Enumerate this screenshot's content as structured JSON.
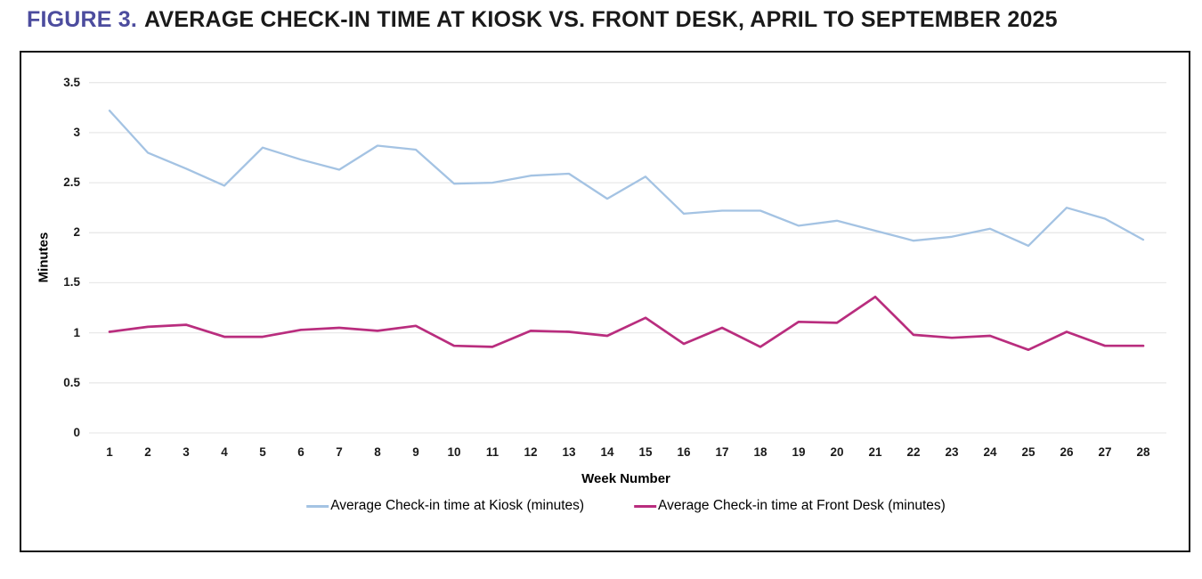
{
  "title": {
    "figure_label": "FIGURE 3.",
    "text": "AVERAGE CHECK-IN TIME AT KIOSK VS. FRONT DESK, APRIL TO SEPTEMBER 2025"
  },
  "colors": {
    "figure_label": "#4c4c9e",
    "title_text": "#1a1a1a",
    "gridline": "#e9e9e9",
    "frame_border": "#0d0d0d",
    "kiosk_line": "#a4c3e3",
    "front_desk_line": "#b92d7e"
  },
  "chart_data": {
    "type": "line",
    "title": "FIGURE 3. AVERAGE CHECK-IN TIME AT KIOSK VS. FRONT DESK, APRIL TO SEPTEMBER 2025",
    "xlabel": "Week Number",
    "ylabel": "Minutes",
    "ylim": [
      0,
      3.5
    ],
    "yticks": [
      "0",
      "0.5",
      "1",
      "1.5",
      "2",
      "2.5",
      "3",
      "3.5"
    ],
    "grid": "horizontal",
    "legend_position": "bottom",
    "x": [
      1,
      2,
      3,
      4,
      5,
      6,
      7,
      8,
      9,
      10,
      11,
      12,
      13,
      14,
      15,
      16,
      17,
      18,
      19,
      20,
      21,
      22,
      23,
      24,
      25,
      26,
      27,
      28
    ],
    "series": [
      {
        "id": "kiosk",
        "name": "Average Check-in time at Kiosk (minutes)",
        "color": "#a4c3e3",
        "values": [
          3.22,
          2.8,
          2.64,
          2.47,
          2.85,
          2.73,
          2.63,
          2.87,
          2.83,
          2.49,
          2.5,
          2.57,
          2.59,
          2.34,
          2.56,
          2.19,
          2.22,
          2.22,
          2.07,
          2.12,
          2.02,
          1.92,
          1.96,
          2.04,
          1.87,
          2.25,
          2.14,
          1.93
        ]
      },
      {
        "id": "front-desk",
        "name": "Average Check-in time at Front Desk (minutes)",
        "color": "#b92d7e",
        "values": [
          1.01,
          1.06,
          1.08,
          0.96,
          0.96,
          1.03,
          1.05,
          1.02,
          1.07,
          0.87,
          0.86,
          1.02,
          1.01,
          0.97,
          1.15,
          0.89,
          1.05,
          0.86,
          1.11,
          1.1,
          1.36,
          0.98,
          0.95,
          0.97,
          0.83,
          1.01,
          0.87,
          0.87
        ]
      }
    ]
  }
}
